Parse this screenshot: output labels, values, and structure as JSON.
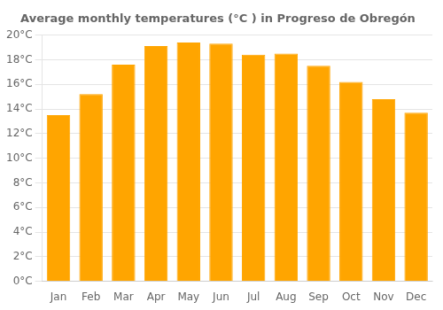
{
  "chart_data": {
    "type": "bar",
    "title": "Average monthly temperatures (°C ) in Progreso de Obregón",
    "categories": [
      "Jan",
      "Feb",
      "Mar",
      "Apr",
      "May",
      "Jun",
      "Jul",
      "Aug",
      "Sep",
      "Oct",
      "Nov",
      "Dec"
    ],
    "values": [
      13.5,
      15.2,
      17.6,
      19.1,
      19.4,
      19.3,
      18.4,
      18.5,
      17.5,
      16.2,
      14.8,
      13.7
    ],
    "color": "#FFA500",
    "ylim": [
      0,
      20
    ],
    "yticks": [
      {
        "value": 0,
        "label": "0°C"
      },
      {
        "value": 2,
        "label": "2°C"
      },
      {
        "value": 4,
        "label": "4°C"
      },
      {
        "value": 6,
        "label": "6°C"
      },
      {
        "value": 8,
        "label": "8°C"
      },
      {
        "value": 10,
        "label": "10°C"
      },
      {
        "value": 12,
        "label": "12°C"
      },
      {
        "value": 14,
        "label": "14°C"
      },
      {
        "value": 16,
        "label": "16°C"
      },
      {
        "value": 18,
        "label": "18°C"
      },
      {
        "value": 20,
        "label": "20°C"
      }
    ],
    "grid": true
  }
}
